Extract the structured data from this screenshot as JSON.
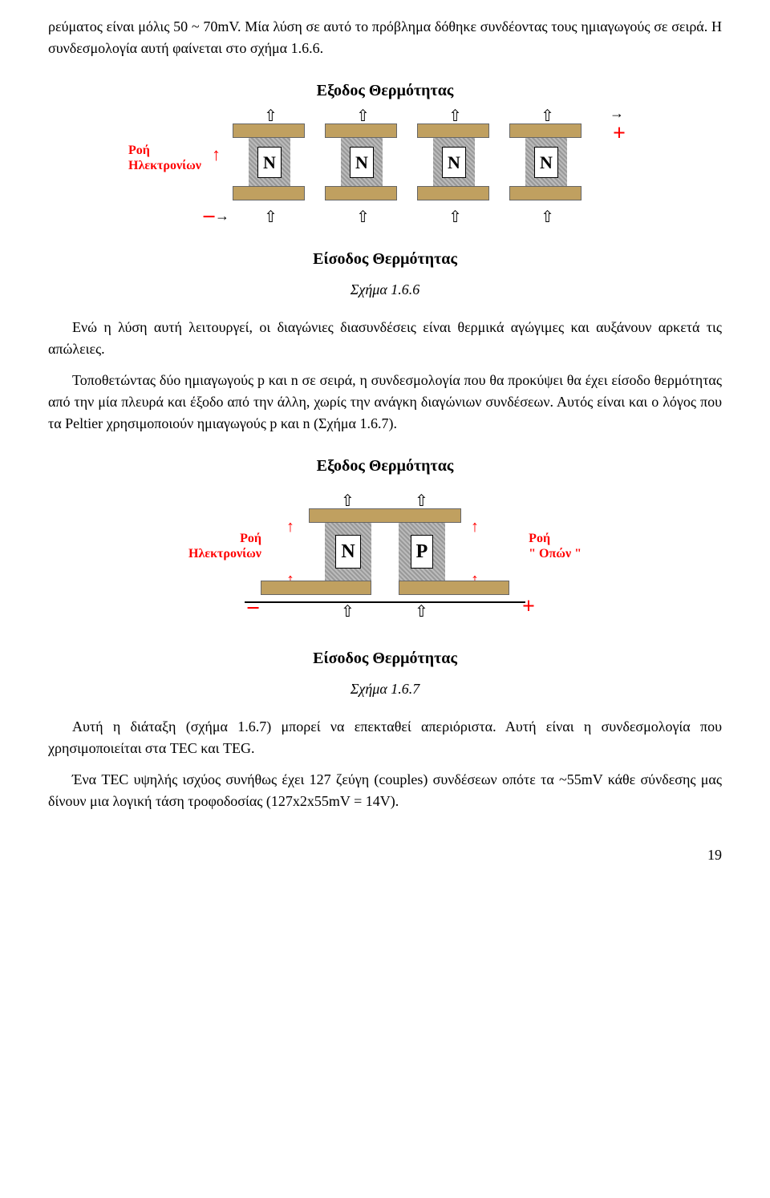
{
  "para1": "ρεύματος είναι μόλις 50 ~ 70mV. Μία λύση σε αυτό το πρόβλημα δόθηκε συνδέοντας τους ημιαγωγούς σε σειρά. Η συνδεσμολογία αυτή φαίνεται στο σχήμα 1.6.6.",
  "fig166": {
    "topTitle": "Εξοδος Θερμότητας",
    "bottomTitle": "Είσοδος Θερμότητας",
    "roiLabel": "Ροή\nΗλεκτρονίων",
    "nLabel": "N",
    "plus": "+",
    "minus": "−",
    "caption": "Σχήμα 1.6.6",
    "barColor": "#c0a060",
    "redColor": "#ff0000"
  },
  "para2": "Ενώ η λύση αυτή λειτουργεί, οι διαγώνιες διασυνδέσεις είναι θερμικά αγώγιμες και αυξάνουν αρκετά τις απώλειες.",
  "para3": "Τοποθετώντας δύο ημιαγωγούς p και n σε σειρά, η συνδεσμολογία που θα προκύψει θα έχει είσοδο θερμότητας από την μία πλευρά και έξοδο από την άλλη, χωρίς την ανάγκη διαγώνιων συνδέσεων. Αυτός είναι και ο λόγος που τα Peltier χρησιμοποιούν ημιαγωγούς p και n (Σχήμα 1.6.7).",
  "fig167": {
    "topTitle": "Εξοδος Θερμότητας",
    "bottomTitle": "Είσοδος Θερμότητας",
    "leftLabel": "Ροή\nΗλεκτρονίων",
    "rightLabel": "Ροή\n\" Οπών \"",
    "nLabel": "N",
    "pLabel": "P",
    "plus": "+",
    "minus": "−",
    "caption": "Σχήμα 1.6.7",
    "barColor": "#c0a060",
    "redColor": "#ff0000"
  },
  "para4": "Αυτή η διάταξη (σχήμα 1.6.7) μπορεί να επεκταθεί απεριόριστα. Αυτή είναι η συνδεσμολογία που χρησιμοποιείται στα TEC και TEG.",
  "para5": "Ένα TEC υψηλής ισχύος συνήθως έχει 127 ζεύγη (couples) συνδέσεων οπότε τα ~55mV κάθε σύνδεσης μας δίνουν μια λογική τάση τροφοδοσίας (127x2x55mV = 14V).",
  "pageNumber": "19"
}
